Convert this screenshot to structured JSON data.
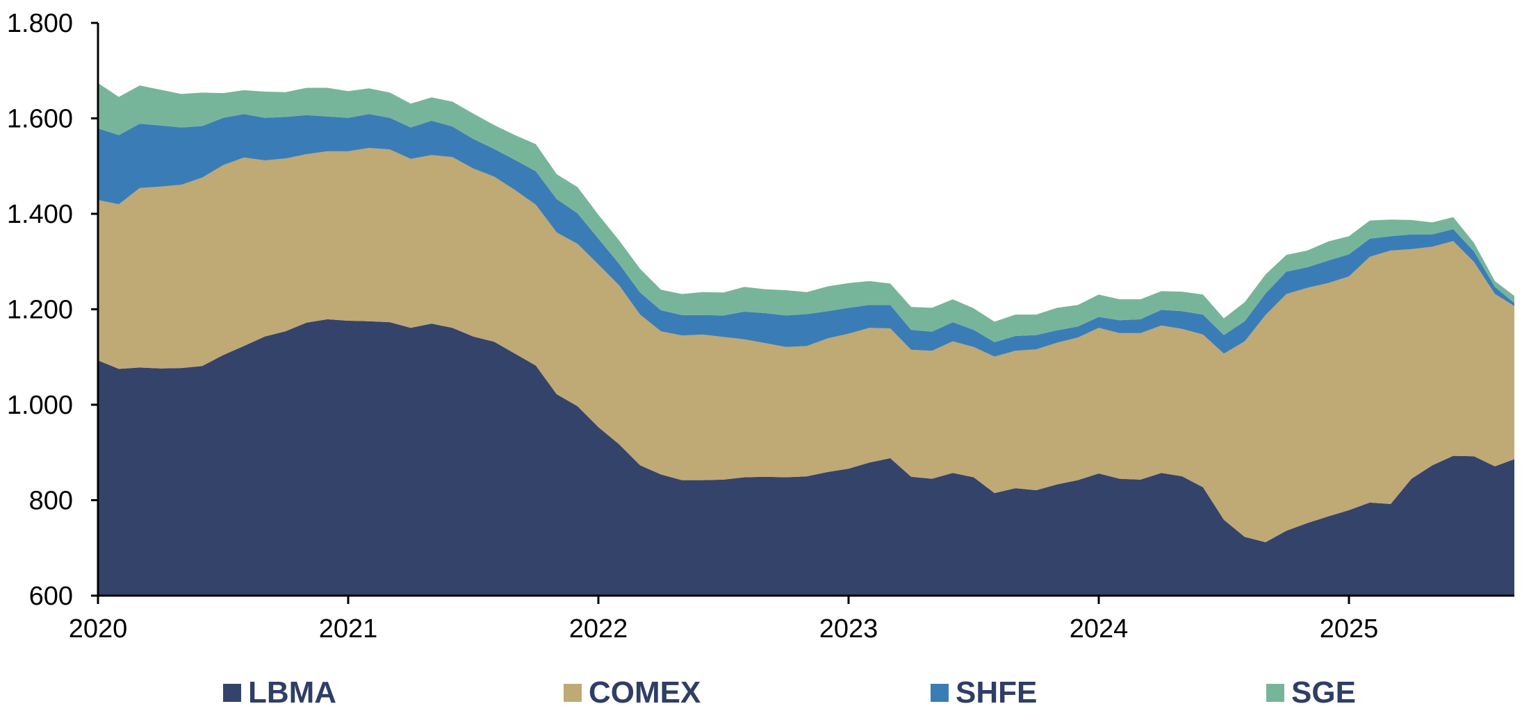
{
  "chart_data": {
    "type": "area",
    "stacked": true,
    "title": "",
    "xlabel": "",
    "ylabel": "",
    "ylim": [
      600,
      1800
    ],
    "yticks": [
      "600",
      "800",
      "1.000",
      "1.200",
      "1.400",
      "1.600",
      "1.800"
    ],
    "xticks": [
      "2020",
      "2021",
      "2022",
      "2023",
      "2024",
      "2025"
    ],
    "x_start": "2020-01",
    "x_frequency": "monthly",
    "grid": false,
    "legend_position": "bottom",
    "colors": {
      "LBMA": "#34436a",
      "COMEX": "#bfa975",
      "SHFE": "#3a7db6",
      "SGE": "#77b59a"
    },
    "series": [
      {
        "name": "LBMA",
        "values": [
          1093,
          1075,
          1078,
          1076,
          1077,
          1081,
          1104,
          1123,
          1143,
          1154,
          1172,
          1179,
          1176,
          1175,
          1173,
          1161,
          1170,
          1161,
          1143,
          1132,
          1107,
          1082,
          1022,
          997,
          953,
          917,
          873,
          854,
          842,
          842,
          843,
          848,
          849,
          848,
          850,
          859,
          866,
          879,
          888,
          849,
          845,
          857,
          848,
          815,
          825,
          821,
          833,
          842,
          856,
          845,
          843,
          857,
          850,
          827,
          759,
          723,
          712,
          736,
          752,
          766,
          779,
          795,
          792,
          845,
          873,
          893,
          892,
          871,
          886
        ]
      },
      {
        "name": "COMEX",
        "values": [
          336,
          345,
          376,
          381,
          384,
          395,
          398,
          395,
          369,
          362,
          353,
          352,
          355,
          363,
          362,
          354,
          353,
          358,
          352,
          346,
          343,
          337,
          339,
          340,
          341,
          333,
          316,
          300,
          303,
          305,
          299,
          289,
          280,
          273,
          273,
          280,
          283,
          282,
          272,
          266,
          268,
          276,
          273,
          286,
          288,
          295,
          297,
          299,
          305,
          305,
          307,
          309,
          309,
          320,
          348,
          410,
          476,
          496,
          493,
          489,
          490,
          515,
          531,
          481,
          458,
          450,
          407,
          361,
          321
        ]
      },
      {
        "name": "SHFE",
        "values": [
          150,
          145,
          135,
          128,
          120,
          108,
          99,
          91,
          89,
          87,
          82,
          73,
          70,
          71,
          66,
          66,
          72,
          64,
          62,
          58,
          63,
          70,
          70,
          64,
          54,
          45,
          46,
          44,
          43,
          41,
          45,
          58,
          63,
          66,
          67,
          57,
          54,
          48,
          49,
          42,
          40,
          40,
          36,
          30,
          31,
          30,
          26,
          23,
          23,
          27,
          29,
          33,
          37,
          42,
          39,
          42,
          45,
          47,
          43,
          47,
          46,
          38,
          30,
          31,
          26,
          25,
          22,
          15,
          6
        ]
      },
      {
        "name": "SGE",
        "values": [
          95,
          80,
          80,
          75,
          70,
          70,
          52,
          50,
          55,
          52,
          57,
          60,
          56,
          54,
          53,
          50,
          49,
          52,
          53,
          50,
          52,
          57,
          52,
          55,
          50,
          49,
          50,
          43,
          44,
          48,
          48,
          52,
          50,
          53,
          46,
          52,
          52,
          50,
          45,
          48,
          50,
          48,
          45,
          43,
          45,
          43,
          47,
          45,
          47,
          44,
          42,
          39,
          41,
          42,
          35,
          40,
          40,
          35,
          35,
          40,
          38,
          38,
          35,
          30,
          25,
          25,
          18,
          12,
          15
        ]
      }
    ]
  }
}
